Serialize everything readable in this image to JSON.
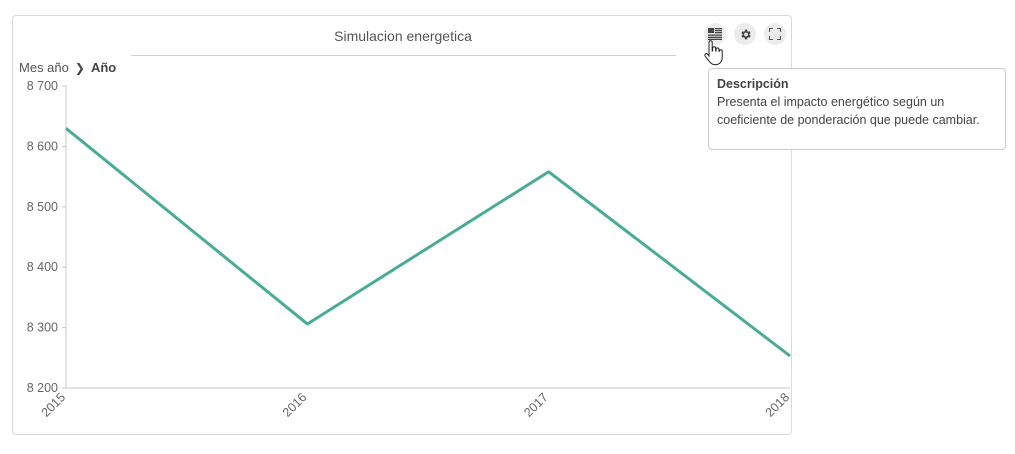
{
  "widget": {
    "title": "Simulacion energetica",
    "breadcrumb": {
      "parent": "Mes año",
      "current": "Año"
    },
    "toolbar": {
      "description_icon": "description-icon",
      "settings_icon": "gear-icon",
      "fullscreen_icon": "fullscreen-icon"
    },
    "tooltip": {
      "title": "Descripción",
      "text": "Presenta el impacto energético según un coeficiente de ponderación que puede cambiar."
    }
  },
  "chart_data": {
    "type": "line",
    "x": [
      "2015",
      "2016",
      "2017",
      "2018"
    ],
    "series": [
      {
        "values": [
          8630,
          8306,
          8558,
          8253
        ],
        "color": "#4aab96"
      }
    ],
    "ylim": [
      8200,
      8700
    ],
    "yticks": [
      8200,
      8300,
      8400,
      8500,
      8600,
      8700
    ],
    "ytick_labels": [
      "8 200",
      "8 300",
      "8 400",
      "8 500",
      "8 600",
      "8 700"
    ],
    "grid": false,
    "legend": "none"
  }
}
